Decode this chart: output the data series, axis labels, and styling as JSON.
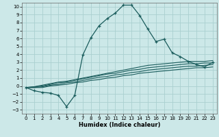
{
  "xlabel": "Humidex (Indice chaleur)",
  "bg_color": "#cce8e8",
  "line_color": "#1a5c5c",
  "grid_color": "#aad0d0",
  "xlim": [
    -0.5,
    23.5
  ],
  "ylim": [
    -3.5,
    10.5
  ],
  "xticks": [
    0,
    1,
    2,
    3,
    4,
    5,
    6,
    7,
    8,
    9,
    10,
    11,
    12,
    13,
    14,
    15,
    16,
    17,
    18,
    19,
    20,
    21,
    22,
    23
  ],
  "yticks": [
    -3,
    -2,
    -1,
    0,
    1,
    2,
    3,
    4,
    5,
    6,
    7,
    8,
    9,
    10
  ],
  "main_line_x": [
    0,
    1,
    2,
    3,
    4,
    5,
    6,
    7,
    8,
    9,
    10,
    11,
    12,
    13,
    14,
    15,
    16,
    17,
    18,
    19,
    20,
    21,
    22,
    23
  ],
  "main_line_y": [
    -0.2,
    -0.6,
    -0.8,
    -0.9,
    -1.2,
    -2.6,
    -1.2,
    3.9,
    6.1,
    7.6,
    8.5,
    9.2,
    10.2,
    10.2,
    8.9,
    7.2,
    5.6,
    5.9,
    4.2,
    3.7,
    3.1,
    2.7,
    2.4,
    3.0
  ],
  "flat_lines": [
    [
      -0.2,
      -0.1,
      0.1,
      0.3,
      0.5,
      0.6,
      0.8,
      1.0,
      1.2,
      1.4,
      1.6,
      1.8,
      2.0,
      2.2,
      2.4,
      2.6,
      2.7,
      2.8,
      2.9,
      3.0,
      3.1,
      3.1,
      3.1,
      3.2
    ],
    [
      -0.2,
      -0.1,
      0.0,
      0.2,
      0.4,
      0.5,
      0.7,
      0.9,
      1.1,
      1.3,
      1.5,
      1.6,
      1.8,
      2.0,
      2.1,
      2.3,
      2.4,
      2.5,
      2.6,
      2.7,
      2.8,
      2.8,
      2.9,
      2.9
    ],
    [
      -0.2,
      -0.2,
      -0.1,
      0.1,
      0.2,
      0.4,
      0.5,
      0.7,
      0.9,
      1.1,
      1.2,
      1.4,
      1.5,
      1.7,
      1.8,
      2.0,
      2.1,
      2.2,
      2.3,
      2.4,
      2.5,
      2.5,
      2.6,
      2.7
    ],
    [
      -0.2,
      -0.2,
      -0.2,
      0.0,
      0.1,
      0.2,
      0.4,
      0.5,
      0.7,
      0.8,
      1.0,
      1.1,
      1.3,
      1.4,
      1.6,
      1.7,
      1.8,
      1.9,
      2.0,
      2.1,
      2.2,
      2.3,
      2.3,
      2.4
    ]
  ]
}
